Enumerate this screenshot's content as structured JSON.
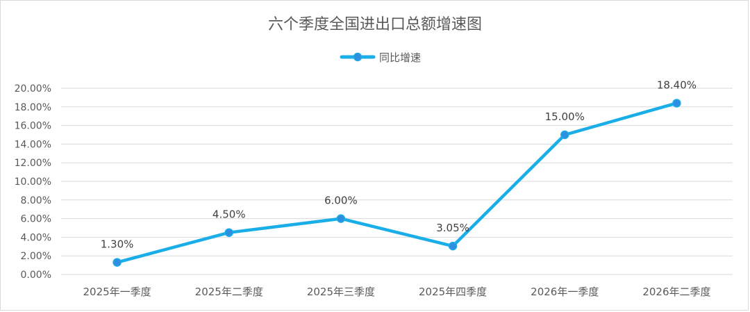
{
  "chart_data": {
    "type": "line",
    "title": "六个季度全国进出口总额增速图",
    "categories": [
      "2025年一季度",
      "2025年二季度",
      "2025年三季度",
      "2025年四季度",
      "2026年一季度",
      "2026年二季度"
    ],
    "series": [
      {
        "name": "同比增速",
        "values": [
          1.3,
          4.5,
          6.0,
          3.05,
          15.0,
          18.4
        ],
        "data_labels": [
          "1.30%",
          "4.50%",
          "6.00%",
          "3.05%",
          "15.00%",
          "18.40%"
        ],
        "color": "#1aaee8",
        "marker_fill": "#2e8ee0"
      }
    ],
    "y_ticks": [
      "0.00%",
      "2.00%",
      "4.00%",
      "6.00%",
      "8.00%",
      "10.00%",
      "12.00%",
      "14.00%",
      "16.00%",
      "18.00%",
      "20.00%"
    ],
    "ylim": [
      0,
      20
    ],
    "y_step": 2,
    "grid": true,
    "legend_position": "top-center",
    "gridline_color": "#d9d9d9"
  }
}
